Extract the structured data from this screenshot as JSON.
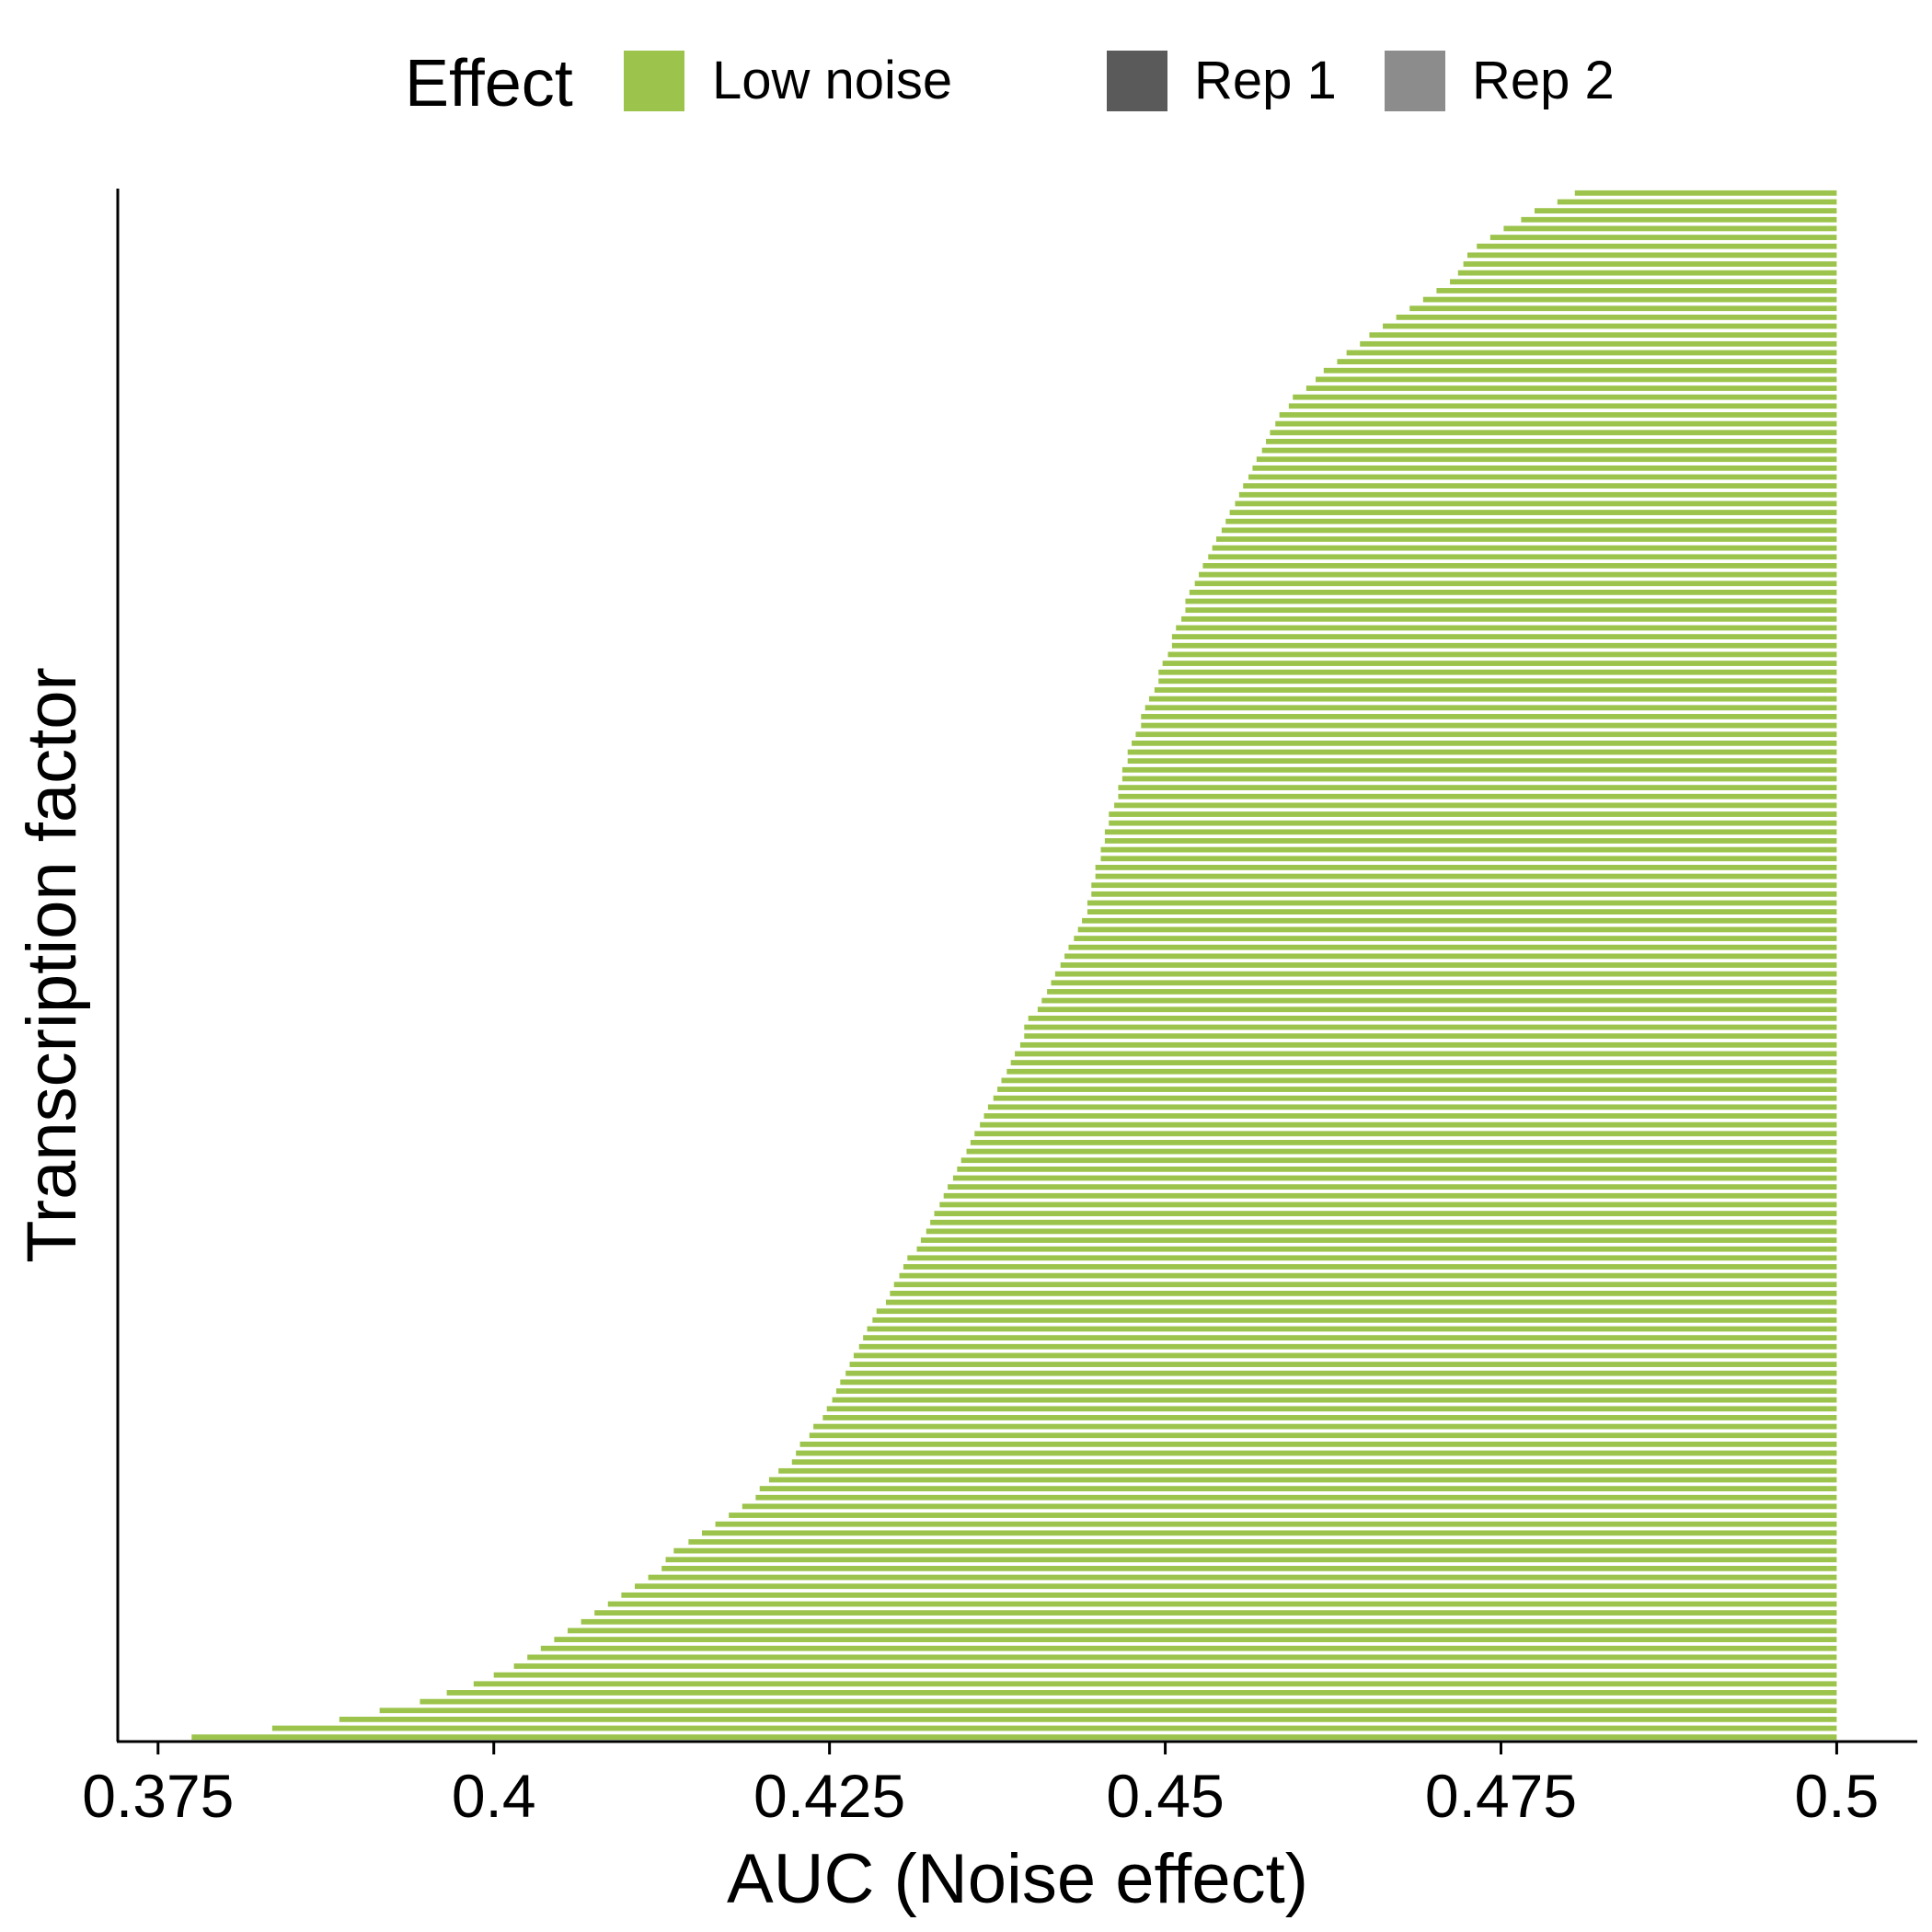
{
  "chart_data": {
    "type": "bar",
    "orientation": "horizontal",
    "title": "",
    "xlabel": "AUC (Noise effect)",
    "ylabel": "Transcription factor",
    "xlim": [
      0.372,
      0.506
    ],
    "x_ticks": [
      "0.375",
      "0.4",
      "0.425",
      "0.45",
      "0.475",
      "0.5"
    ],
    "x_tick_values": [
      0.375,
      0.4,
      0.425,
      0.45,
      0.475,
      0.5
    ],
    "bar_end": 0.5,
    "n_bars": 175,
    "grid": false,
    "legend": {
      "title": "Effect",
      "position": "top",
      "entries": [
        {
          "label": "Low noise",
          "color": "#9cc44c"
        },
        {
          "label": "Rep 1",
          "color": "#5a5a5a"
        },
        {
          "label": "Rep 2",
          "color": "#8c8c8c"
        }
      ]
    },
    "colors": {
      "bar": "#9cc44c",
      "axis": "#000000"
    },
    "series": [
      {
        "name": "Low noise",
        "values": [
          0.3775,
          0.3835,
          0.3885,
          0.3915,
          0.3945,
          0.3965,
          0.3985,
          0.4,
          0.4015,
          0.4025,
          0.4035,
          0.4045,
          0.4055,
          0.4065,
          0.4075,
          0.4085,
          0.4095,
          0.4105,
          0.4115,
          0.4125,
          0.4128,
          0.4134,
          0.4145,
          0.4155,
          0.4165,
          0.4175,
          0.4185,
          0.4195,
          0.4198,
          0.4205,
          0.4212,
          0.4222,
          0.4225,
          0.4228,
          0.4235,
          0.4238,
          0.4245,
          0.4248,
          0.4252,
          0.4255,
          0.4258,
          0.4262,
          0.4265,
          0.4268,
          0.4272,
          0.4275,
          0.4278,
          0.4282,
          0.4285,
          0.4292,
          0.4295,
          0.4298,
          0.4302,
          0.4305,
          0.4308,
          0.4315,
          0.4318,
          0.4322,
          0.4325,
          0.4328,
          0.4332,
          0.4335,
          0.4338,
          0.4342,
          0.4345,
          0.4348,
          0.4352,
          0.4355,
          0.4358,
          0.4362,
          0.4365,
          0.4368,
          0.4372,
          0.4375,
          0.4378,
          0.4382,
          0.4385,
          0.4388,
          0.4392,
          0.4395,
          0.4395,
          0.4398,
          0.4405,
          0.4408,
          0.4412,
          0.4415,
          0.4418,
          0.4422,
          0.4425,
          0.4428,
          0.4432,
          0.4435,
          0.4438,
          0.4442,
          0.4442,
          0.4445,
          0.4445,
          0.4448,
          0.4448,
          0.4452,
          0.4452,
          0.4455,
          0.4455,
          0.4458,
          0.4458,
          0.4462,
          0.4465,
          0.4465,
          0.4468,
          0.4468,
          0.4472,
          0.4472,
          0.4475,
          0.4478,
          0.4482,
          0.4482,
          0.4485,
          0.4488,
          0.4492,
          0.4495,
          0.4495,
          0.4498,
          0.4502,
          0.4505,
          0.4505,
          0.4508,
          0.4512,
          0.4515,
          0.4515,
          0.4518,
          0.4522,
          0.4525,
          0.4528,
          0.4532,
          0.4535,
          0.4538,
          0.4542,
          0.4545,
          0.4548,
          0.4552,
          0.4555,
          0.4558,
          0.4562,
          0.4565,
          0.4568,
          0.4572,
          0.4575,
          0.4578,
          0.4582,
          0.4585,
          0.4592,
          0.4595,
          0.4605,
          0.4612,
          0.4618,
          0.4628,
          0.4635,
          0.4645,
          0.4652,
          0.4662,
          0.4672,
          0.4682,
          0.4692,
          0.4702,
          0.4712,
          0.4718,
          0.4722,
          0.4725,
          0.4732,
          0.4742,
          0.4752,
          0.4765,
          0.4775,
          0.4792,
          0.4805
        ]
      }
    ]
  }
}
